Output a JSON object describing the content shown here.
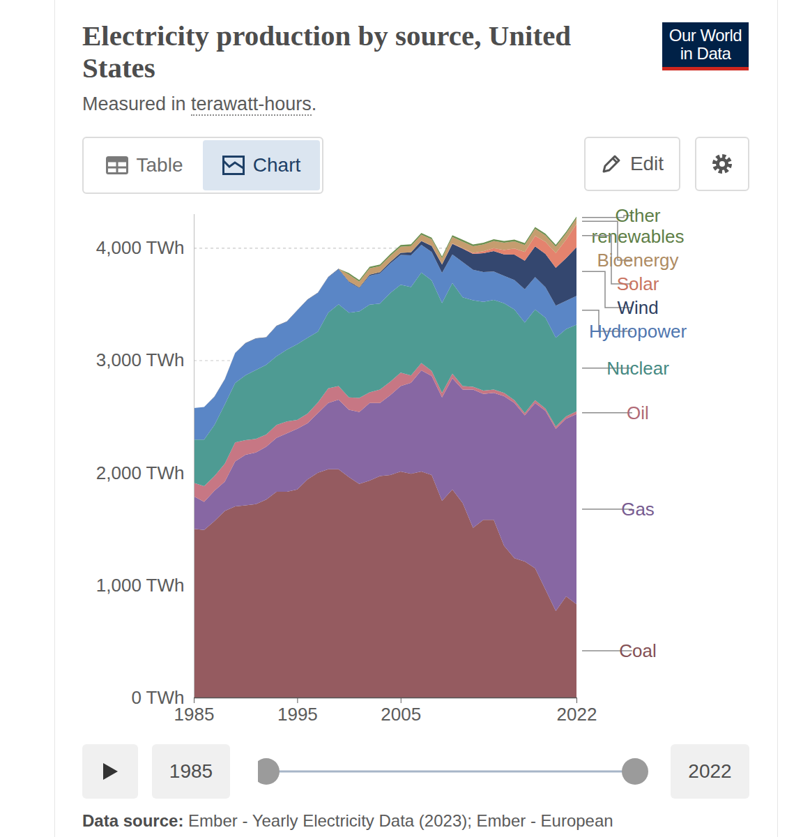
{
  "chart_data": {
    "type": "area",
    "title": "Electricity production by source, United States",
    "subtitle": "Measured in terawatt-hours.",
    "subtitle_term": "terawatt-hours",
    "stacked": true,
    "grid": true,
    "x": [
      1985,
      1986,
      1987,
      1988,
      1989,
      1990,
      1991,
      1992,
      1993,
      1994,
      1995,
      1996,
      1997,
      1998,
      1999,
      2000,
      2001,
      2002,
      2003,
      2004,
      2005,
      2006,
      2007,
      2008,
      2009,
      2010,
      2011,
      2012,
      2013,
      2014,
      2015,
      2016,
      2017,
      2018,
      2019,
      2020,
      2021,
      2022
    ],
    "xlim": [
      1985,
      2022
    ],
    "xticks": [
      1985,
      1995,
      2005,
      2022
    ],
    "ylim": [
      0,
      4300
    ],
    "yticks": [
      {
        "value": 0,
        "label": "0 TWh"
      },
      {
        "value": 1000,
        "label": "1,000 TWh"
      },
      {
        "value": 2000,
        "label": "2,000 TWh"
      },
      {
        "value": 3000,
        "label": "3,000 TWh"
      },
      {
        "value": 4000,
        "label": "4,000 TWh"
      }
    ],
    "series": [
      {
        "name": "Coal",
        "color": "#955b60",
        "values": [
          1500,
          1490,
          1570,
          1660,
          1700,
          1710,
          1720,
          1760,
          1830,
          1830,
          1850,
          1940,
          2000,
          2030,
          2030,
          1960,
          1900,
          1930,
          1970,
          1980,
          2010,
          1990,
          2010,
          1980,
          1750,
          1850,
          1730,
          1510,
          1580,
          1580,
          1350,
          1240,
          1210,
          1150,
          960,
          770,
          900,
          830
        ]
      },
      {
        "name": "Gas",
        "color": "#8767a3",
        "values": [
          290,
          250,
          270,
          260,
          400,
          450,
          460,
          470,
          480,
          520,
          540,
          500,
          530,
          590,
          620,
          600,
          640,
          690,
          650,
          710,
          760,
          810,
          900,
          880,
          920,
          990,
          1010,
          1230,
          1120,
          1130,
          1330,
          1380,
          1300,
          1470,
          1590,
          1620,
          1580,
          1690
        ]
      },
      {
        "name": "Oil",
        "color": "#c77784",
        "values": [
          120,
          140,
          130,
          160,
          170,
          130,
          120,
          110,
          115,
          105,
          80,
          85,
          95,
          130,
          120,
          110,
          125,
          95,
          120,
          120,
          120,
          65,
          65,
          45,
          40,
          40,
          30,
          25,
          30,
          30,
          30,
          25,
          20,
          25,
          20,
          20,
          20,
          25
        ]
      },
      {
        "name": "Nuclear",
        "color": "#4e9b93",
        "values": [
          384,
          414,
          455,
          527,
          529,
          577,
          613,
          619,
          610,
          640,
          673,
          675,
          629,
          673,
          728,
          754,
          769,
          780,
          764,
          789,
          782,
          787,
          806,
          806,
          799,
          807,
          790,
          769,
          789,
          797,
          797,
          806,
          805,
          807,
          809,
          790,
          778,
          772
        ]
      },
      {
        "name": "Hydropower",
        "color": "#5a86c6",
        "values": [
          281,
          291,
          250,
          223,
          265,
          283,
          280,
          243,
          269,
          248,
          300,
          338,
          345,
          315,
          312,
          271,
          208,
          257,
          268,
          262,
          265,
          282,
          246,
          252,
          268,
          255,
          313,
          271,
          266,
          252,
          244,
          262,
          297,
          288,
          271,
          285,
          251,
          255
        ]
      },
      {
        "name": "Wind",
        "color": "#34476f",
        "values": [
          0,
          0,
          2,
          2,
          2,
          3,
          3,
          3,
          3,
          3,
          3,
          3,
          3,
          3,
          5,
          6,
          7,
          10,
          11,
          14,
          18,
          27,
          34,
          55,
          74,
          95,
          120,
          141,
          168,
          182,
          191,
          227,
          254,
          273,
          296,
          338,
          380,
          434
        ]
      },
      {
        "name": "Solar",
        "color": "#e4836e",
        "values": [
          0,
          0,
          0,
          0,
          0,
          0,
          0,
          0,
          0,
          0,
          0,
          0,
          0,
          0,
          0,
          0,
          0,
          0,
          0,
          0,
          0,
          0,
          1,
          2,
          2,
          3,
          5,
          10,
          16,
          26,
          39,
          55,
          77,
          93,
          107,
          131,
          165,
          205
        ]
      },
      {
        "name": "Bioenergy",
        "color": "#c59d6f",
        "values": [
          0,
          0,
          0,
          0,
          0,
          0,
          0,
          0,
          0,
          0,
          0,
          0,
          0,
          0,
          0,
          60,
          50,
          55,
          55,
          55,
          55,
          55,
          55,
          56,
          55,
          57,
          57,
          58,
          61,
          64,
          64,
          63,
          63,
          63,
          58,
          56,
          54,
          51
        ]
      },
      {
        "name": "Other renewables",
        "color": "#6b8f4f",
        "values": [
          0,
          0,
          0,
          0,
          0,
          0,
          0,
          0,
          0,
          0,
          0,
          0,
          0,
          0,
          0,
          14,
          14,
          14,
          14,
          15,
          15,
          15,
          15,
          15,
          15,
          16,
          17,
          16,
          16,
          16,
          16,
          16,
          16,
          16,
          16,
          17,
          16,
          16
        ]
      }
    ]
  },
  "page": {
    "logo": [
      "Our World",
      "in Data"
    ],
    "tabs": [
      {
        "label": "Table",
        "selected": false
      },
      {
        "label": "Chart",
        "selected": true
      }
    ],
    "edit_button": "Edit",
    "timeline": {
      "start": 1985,
      "end": 2022
    },
    "source_label": "Data source:",
    "source_text": "Ember - Yearly Electricity Data (2023); Ember - European"
  }
}
